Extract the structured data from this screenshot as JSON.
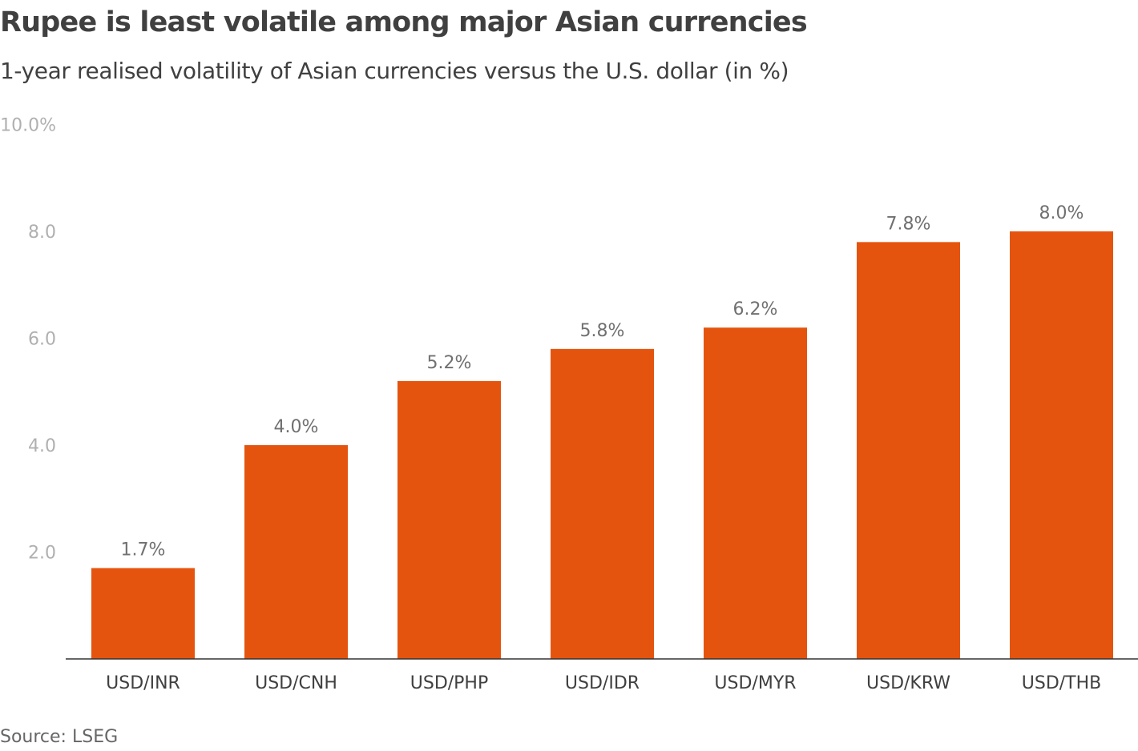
{
  "chart_data": {
    "type": "bar",
    "title": "Rupee is least volatile among major Asian currencies",
    "subtitle": "1-year realised volatility of Asian currencies versus the U.S. dollar (in %)",
    "source": "Source: LSEG",
    "xlabel": "",
    "ylabel": "",
    "ylim": [
      0,
      10
    ],
    "grid": false,
    "yticks": [
      2,
      4,
      6,
      8,
      10
    ],
    "ytick_labels": [
      "2.0",
      "4.0",
      "6.0",
      "8.0",
      "10.0%"
    ],
    "categories": [
      "USD/INR",
      "USD/CNH",
      "USD/PHP",
      "USD/IDR",
      "USD/MYR",
      "USD/KRW",
      "USD/THB"
    ],
    "values": [
      1.7,
      4.0,
      5.2,
      5.8,
      6.2,
      7.8,
      8.0
    ],
    "value_labels": [
      "1.7%",
      "4.0%",
      "5.2%",
      "5.8%",
      "6.2%",
      "7.8%",
      "8.0%"
    ],
    "bar_color": "#e5540f"
  }
}
